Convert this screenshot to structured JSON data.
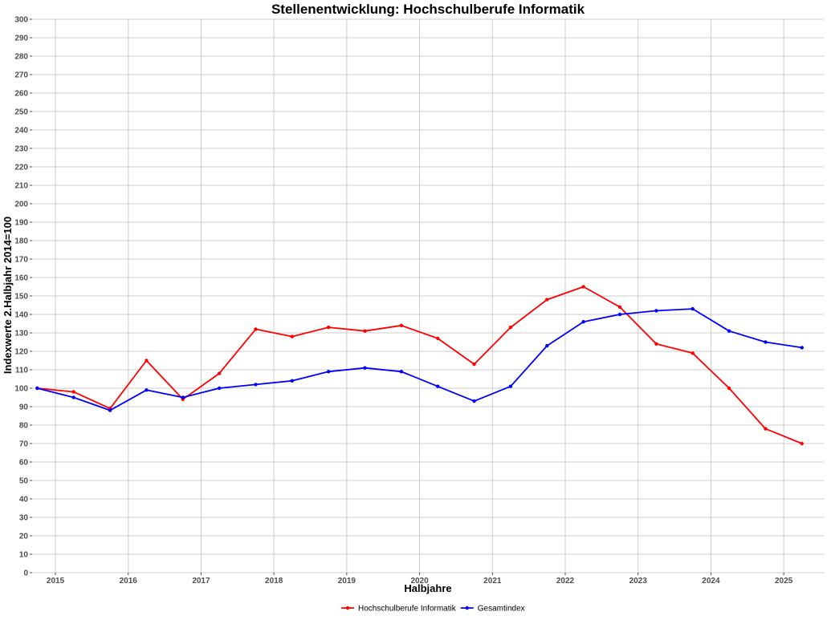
{
  "chart_data": {
    "type": "line",
    "title": "Stellenentwicklung: Hochschulberufe Informatik",
    "xlabel": "Halbjahre",
    "ylabel": "Indexwerte 2.Halbjahr 2014=100",
    "x_tick_labels": [
      "2015",
      "2016",
      "2017",
      "2018",
      "2019",
      "2020",
      "2021",
      "2022",
      "2023",
      "2024",
      "2025"
    ],
    "xlim": [
      2014.68,
      2025.55
    ],
    "ylim": [
      0,
      300
    ],
    "y_tick_step": 10,
    "grid": true,
    "legend_position": "bottom",
    "x": [
      2014.75,
      2015.25,
      2015.75,
      2016.25,
      2016.75,
      2017.25,
      2017.75,
      2018.25,
      2018.75,
      2019.25,
      2019.75,
      2020.25,
      2020.75,
      2021.25,
      2021.75,
      2022.25,
      2022.75,
      2023.25,
      2023.75,
      2024.25,
      2024.75,
      2025.25
    ],
    "series": [
      {
        "name": "Hochschulberufe Informatik",
        "color": "#ff0000",
        "values": [
          100,
          98,
          89,
          115,
          94,
          108,
          132,
          128,
          133,
          131,
          134,
          127,
          113,
          133,
          148,
          155,
          144,
          124,
          119,
          100,
          78,
          70
        ]
      },
      {
        "name": "Gesamtindex",
        "color": "#0000ff",
        "values": [
          100,
          95,
          88,
          99,
          95,
          100,
          102,
          104,
          109,
          111,
          109,
          101,
          93,
          101,
          123,
          136,
          140,
          142,
          143,
          131,
          125,
          122
        ]
      }
    ]
  }
}
